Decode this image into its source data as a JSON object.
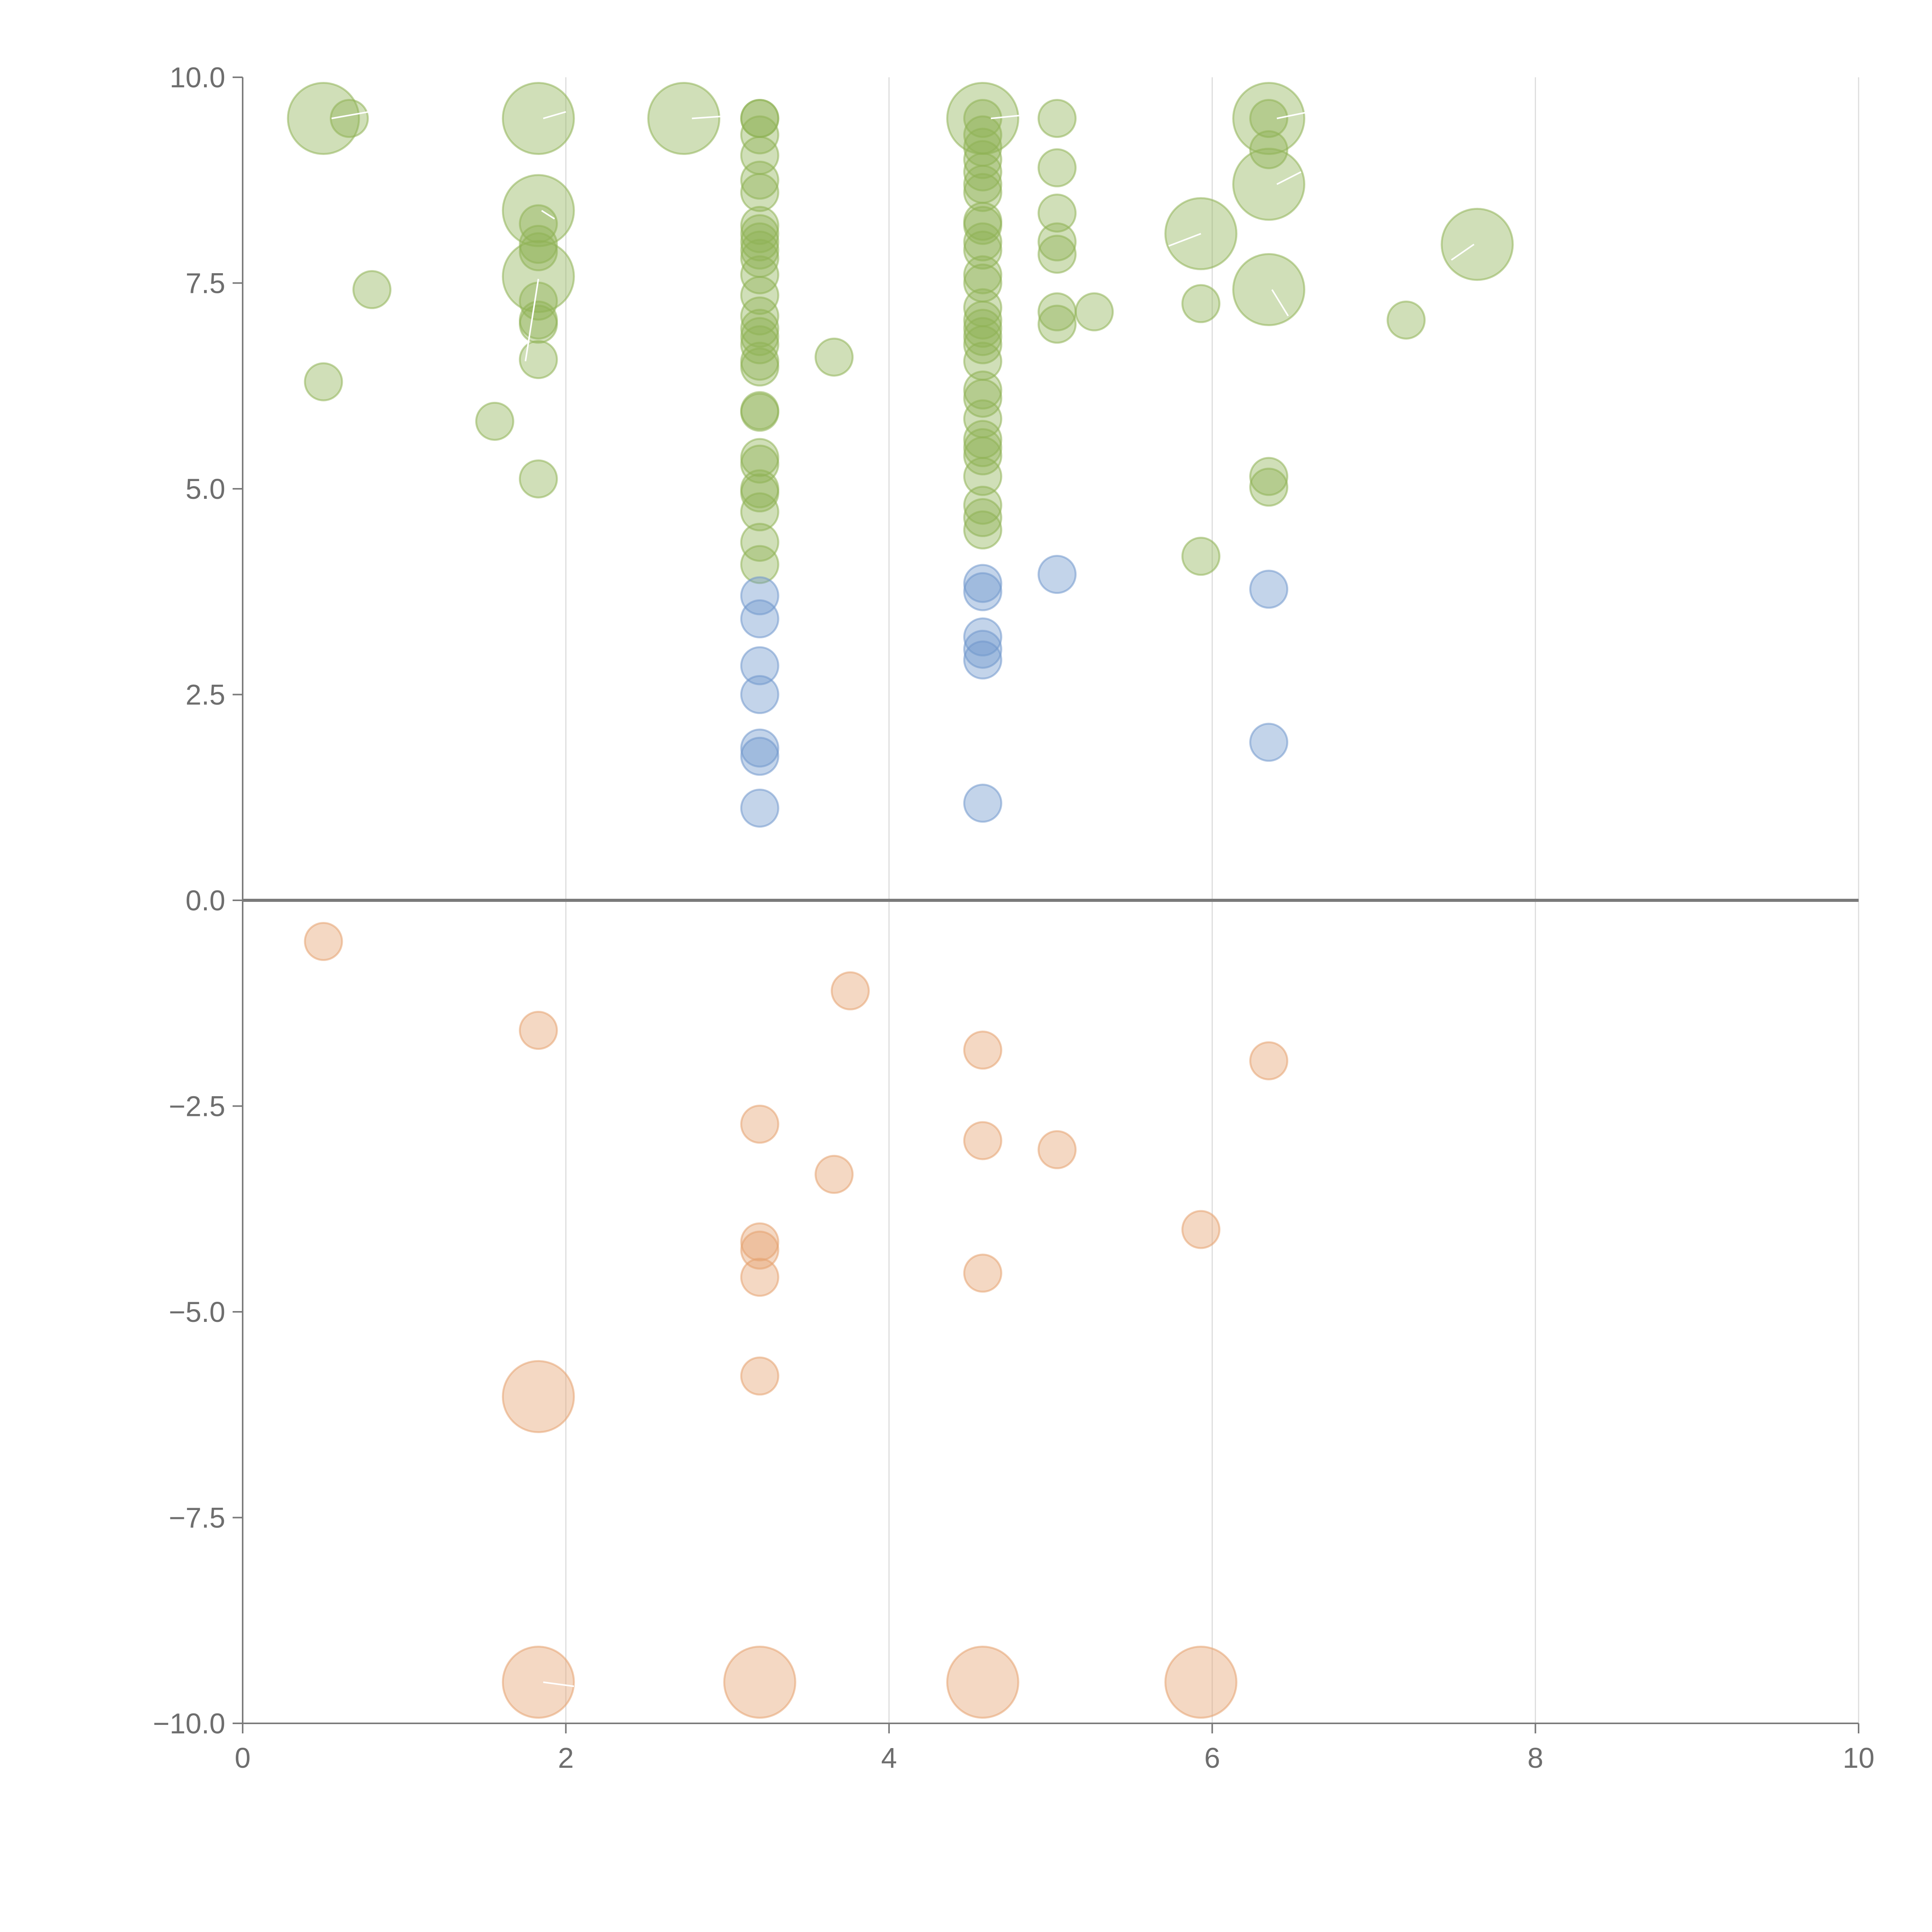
{
  "chart_data": {
    "type": "scatter",
    "title": "",
    "xlabel": "",
    "ylabel": "",
    "xlim": [
      0,
      10
    ],
    "ylim": [
      -10,
      10
    ],
    "xticks": [
      0,
      2,
      4,
      6,
      8,
      10
    ],
    "xtick_labels": [
      "0",
      "2",
      "4",
      "6",
      "8",
      "10"
    ],
    "yticks": [
      10,
      7.5,
      5,
      2.5,
      0,
      -2.5,
      -5,
      -7.5,
      -10
    ],
    "ytick_labels": [
      "10.0",
      "7.5",
      "5.0",
      "2.5",
      "0.0",
      "−2.5",
      "−5.0",
      "−7.5",
      "−10.0"
    ],
    "grid": "vertical",
    "legend": "none",
    "series": [
      {
        "name": "green",
        "color": "#8fb356",
        "points": [
          {
            "x": 0.5,
            "y": 9.5,
            "s": 2
          },
          {
            "x": 0.66,
            "y": 9.5,
            "s": 1
          },
          {
            "x": 1.83,
            "y": 9.5,
            "s": 2
          },
          {
            "x": 2.73,
            "y": 9.5,
            "s": 2
          },
          {
            "x": 3.2,
            "y": 9.5,
            "s": 1
          },
          {
            "x": 3.2,
            "y": 9.5,
            "s": 1
          },
          {
            "x": 4.58,
            "y": 9.5,
            "s": 2
          },
          {
            "x": 4.58,
            "y": 9.5,
            "s": 1
          },
          {
            "x": 5.04,
            "y": 9.5,
            "s": 1
          },
          {
            "x": 6.35,
            "y": 9.5,
            "s": 2
          },
          {
            "x": 6.35,
            "y": 9.5,
            "s": 1
          },
          {
            "x": 0.8,
            "y": 7.42,
            "s": 1
          },
          {
            "x": 0.5,
            "y": 6.3,
            "s": 1
          },
          {
            "x": 1.56,
            "y": 5.82,
            "s": 1
          },
          {
            "x": 1.83,
            "y": 8.38,
            "s": 2
          },
          {
            "x": 1.83,
            "y": 8.22,
            "s": 1
          },
          {
            "x": 1.83,
            "y": 7.97,
            "s": 1
          },
          {
            "x": 1.83,
            "y": 7.88,
            "s": 1
          },
          {
            "x": 1.83,
            "y": 7.58,
            "s": 2
          },
          {
            "x": 1.83,
            "y": 7.28,
            "s": 1
          },
          {
            "x": 1.83,
            "y": 7.05,
            "s": 1
          },
          {
            "x": 1.83,
            "y": 7.0,
            "s": 1
          },
          {
            "x": 1.83,
            "y": 6.57,
            "s": 1
          },
          {
            "x": 1.83,
            "y": 5.12,
            "s": 1
          },
          {
            "x": 3.2,
            "y": 9.3,
            "s": 1
          },
          {
            "x": 3.2,
            "y": 9.05,
            "s": 1
          },
          {
            "x": 3.2,
            "y": 8.75,
            "s": 1
          },
          {
            "x": 3.2,
            "y": 8.6,
            "s": 1
          },
          {
            "x": 3.2,
            "y": 8.2,
            "s": 1
          },
          {
            "x": 3.2,
            "y": 8.1,
            "s": 1
          },
          {
            "x": 3.2,
            "y": 8.0,
            "s": 1
          },
          {
            "x": 3.2,
            "y": 7.9,
            "s": 1
          },
          {
            "x": 3.2,
            "y": 7.8,
            "s": 1
          },
          {
            "x": 3.2,
            "y": 7.6,
            "s": 1
          },
          {
            "x": 3.2,
            "y": 7.35,
            "s": 1
          },
          {
            "x": 3.2,
            "y": 7.1,
            "s": 1
          },
          {
            "x": 3.2,
            "y": 6.95,
            "s": 1
          },
          {
            "x": 3.2,
            "y": 6.85,
            "s": 1
          },
          {
            "x": 3.2,
            "y": 6.75,
            "s": 1
          },
          {
            "x": 3.2,
            "y": 6.55,
            "s": 1
          },
          {
            "x": 3.2,
            "y": 6.48,
            "s": 1
          },
          {
            "x": 3.2,
            "y": 5.95,
            "s": 1
          },
          {
            "x": 3.2,
            "y": 5.93,
            "s": 1
          },
          {
            "x": 3.2,
            "y": 5.38,
            "s": 1
          },
          {
            "x": 3.2,
            "y": 5.3,
            "s": 1
          },
          {
            "x": 3.2,
            "y": 5.0,
            "s": 1
          },
          {
            "x": 3.2,
            "y": 4.95,
            "s": 1
          },
          {
            "x": 3.2,
            "y": 4.72,
            "s": 1
          },
          {
            "x": 3.2,
            "y": 4.35,
            "s": 1
          },
          {
            "x": 3.2,
            "y": 4.08,
            "s": 1
          },
          {
            "x": 3.66,
            "y": 6.6,
            "s": 1
          },
          {
            "x": 4.58,
            "y": 9.3,
            "s": 1
          },
          {
            "x": 4.58,
            "y": 9.15,
            "s": 1
          },
          {
            "x": 4.58,
            "y": 9.0,
            "s": 1
          },
          {
            "x": 4.58,
            "y": 8.85,
            "s": 1
          },
          {
            "x": 4.58,
            "y": 8.7,
            "s": 1
          },
          {
            "x": 4.58,
            "y": 8.6,
            "s": 1
          },
          {
            "x": 4.58,
            "y": 8.25,
            "s": 1
          },
          {
            "x": 4.58,
            "y": 8.2,
            "s": 1
          },
          {
            "x": 4.58,
            "y": 8.0,
            "s": 1
          },
          {
            "x": 4.58,
            "y": 7.9,
            "s": 1
          },
          {
            "x": 4.58,
            "y": 7.6,
            "s": 1
          },
          {
            "x": 4.58,
            "y": 7.5,
            "s": 1
          },
          {
            "x": 4.58,
            "y": 7.2,
            "s": 1
          },
          {
            "x": 4.58,
            "y": 7.05,
            "s": 1
          },
          {
            "x": 4.58,
            "y": 6.95,
            "s": 1
          },
          {
            "x": 4.58,
            "y": 6.85,
            "s": 1
          },
          {
            "x": 4.58,
            "y": 6.75,
            "s": 1
          },
          {
            "x": 4.58,
            "y": 6.55,
            "s": 1
          },
          {
            "x": 4.58,
            "y": 6.2,
            "s": 1
          },
          {
            "x": 4.58,
            "y": 6.1,
            "s": 1
          },
          {
            "x": 4.58,
            "y": 5.85,
            "s": 1
          },
          {
            "x": 4.58,
            "y": 5.6,
            "s": 1
          },
          {
            "x": 4.58,
            "y": 5.5,
            "s": 1
          },
          {
            "x": 4.58,
            "y": 5.4,
            "s": 1
          },
          {
            "x": 4.58,
            "y": 5.15,
            "s": 1
          },
          {
            "x": 4.58,
            "y": 4.8,
            "s": 1
          },
          {
            "x": 4.58,
            "y": 4.65,
            "s": 1
          },
          {
            "x": 4.58,
            "y": 4.5,
            "s": 1
          },
          {
            "x": 5.04,
            "y": 8.9,
            "s": 1
          },
          {
            "x": 5.04,
            "y": 8.35,
            "s": 1
          },
          {
            "x": 5.04,
            "y": 8.0,
            "s": 1
          },
          {
            "x": 5.04,
            "y": 7.85,
            "s": 1
          },
          {
            "x": 5.04,
            "y": 7.15,
            "s": 1
          },
          {
            "x": 5.04,
            "y": 7.0,
            "s": 1
          },
          {
            "x": 5.27,
            "y": 7.15,
            "s": 1
          },
          {
            "x": 5.93,
            "y": 8.1,
            "s": 2
          },
          {
            "x": 5.93,
            "y": 7.25,
            "s": 1
          },
          {
            "x": 5.93,
            "y": 4.18,
            "s": 1
          },
          {
            "x": 6.35,
            "y": 9.12,
            "s": 1
          },
          {
            "x": 6.35,
            "y": 8.7,
            "s": 2
          },
          {
            "x": 6.35,
            "y": 7.42,
            "s": 2
          },
          {
            "x": 6.35,
            "y": 5.15,
            "s": 1
          },
          {
            "x": 6.35,
            "y": 5.02,
            "s": 1
          },
          {
            "x": 7.2,
            "y": 7.05,
            "s": 1
          },
          {
            "x": 7.64,
            "y": 7.97,
            "s": 2
          }
        ]
      },
      {
        "name": "blue",
        "color": "#7198cc",
        "points": [
          {
            "x": 3.2,
            "y": 3.7,
            "s": 1
          },
          {
            "x": 3.2,
            "y": 3.42,
            "s": 1
          },
          {
            "x": 3.2,
            "y": 2.85,
            "s": 1
          },
          {
            "x": 3.2,
            "y": 2.5,
            "s": 1
          },
          {
            "x": 3.2,
            "y": 1.85,
            "s": 1
          },
          {
            "x": 3.2,
            "y": 1.75,
            "s": 1
          },
          {
            "x": 3.2,
            "y": 1.12,
            "s": 1
          },
          {
            "x": 4.58,
            "y": 3.85,
            "s": 1
          },
          {
            "x": 4.58,
            "y": 3.75,
            "s": 1
          },
          {
            "x": 4.58,
            "y": 3.2,
            "s": 1
          },
          {
            "x": 4.58,
            "y": 3.05,
            "s": 1
          },
          {
            "x": 4.58,
            "y": 2.92,
            "s": 1
          },
          {
            "x": 4.58,
            "y": 1.18,
            "s": 1
          },
          {
            "x": 5.04,
            "y": 3.96,
            "s": 1
          },
          {
            "x": 6.35,
            "y": 3.78,
            "s": 1
          },
          {
            "x": 6.35,
            "y": 1.92,
            "s": 1
          }
        ]
      },
      {
        "name": "orange",
        "color": "#e5a370",
        "points": [
          {
            "x": 0.5,
            "y": -0.5,
            "s": 1
          },
          {
            "x": 1.83,
            "y": -1.58,
            "s": 1
          },
          {
            "x": 3.76,
            "y": -1.1,
            "s": 1
          },
          {
            "x": 4.58,
            "y": -1.82,
            "s": 1
          },
          {
            "x": 6.35,
            "y": -1.95,
            "s": 1
          },
          {
            "x": 3.2,
            "y": -2.72,
            "s": 1
          },
          {
            "x": 4.58,
            "y": -2.92,
            "s": 1
          },
          {
            "x": 5.04,
            "y": -3.03,
            "s": 1
          },
          {
            "x": 3.66,
            "y": -3.33,
            "s": 1
          },
          {
            "x": 5.93,
            "y": -4.0,
            "s": 1
          },
          {
            "x": 3.2,
            "y": -4.15,
            "s": 1
          },
          {
            "x": 3.2,
            "y": -4.25,
            "s": 1
          },
          {
            "x": 3.2,
            "y": -4.58,
            "s": 1
          },
          {
            "x": 4.58,
            "y": -4.53,
            "s": 1
          },
          {
            "x": 3.2,
            "y": -5.78,
            "s": 1
          },
          {
            "x": 1.83,
            "y": -6.03,
            "s": 2
          },
          {
            "x": 1.83,
            "y": -9.5,
            "s": 2
          },
          {
            "x": 3.2,
            "y": -9.5,
            "s": 2
          },
          {
            "x": 4.58,
            "y": -9.5,
            "s": 2
          },
          {
            "x": 5.93,
            "y": -9.5,
            "s": 2
          }
        ]
      }
    ],
    "leaders": [
      {
        "x1": 0.55,
        "y1": 9.5,
        "x2": 0.78,
        "y2": 9.58
      },
      {
        "x1": 1.86,
        "y1": 9.5,
        "x2": 2.0,
        "y2": 9.58
      },
      {
        "x1": 2.78,
        "y1": 9.5,
        "x2": 3.0,
        "y2": 9.53
      },
      {
        "x1": 4.63,
        "y1": 9.5,
        "x2": 4.88,
        "y2": 9.55
      },
      {
        "x1": 6.4,
        "y1": 9.5,
        "x2": 6.6,
        "y2": 9.58
      },
      {
        "x1": 1.85,
        "y1": 8.38,
        "x2": 1.93,
        "y2": 8.28
      },
      {
        "x1": 1.83,
        "y1": 7.55,
        "x2": 1.75,
        "y2": 6.55
      },
      {
        "x1": 5.93,
        "y1": 8.1,
        "x2": 5.73,
        "y2": 7.95
      },
      {
        "x1": 6.4,
        "y1": 8.7,
        "x2": 6.55,
        "y2": 8.85
      },
      {
        "x1": 6.37,
        "y1": 7.42,
        "x2": 6.47,
        "y2": 7.1
      },
      {
        "x1": 7.62,
        "y1": 7.97,
        "x2": 7.48,
        "y2": 7.78
      },
      {
        "x1": 1.86,
        "y1": -9.5,
        "x2": 2.05,
        "y2": -9.55
      }
    ]
  }
}
